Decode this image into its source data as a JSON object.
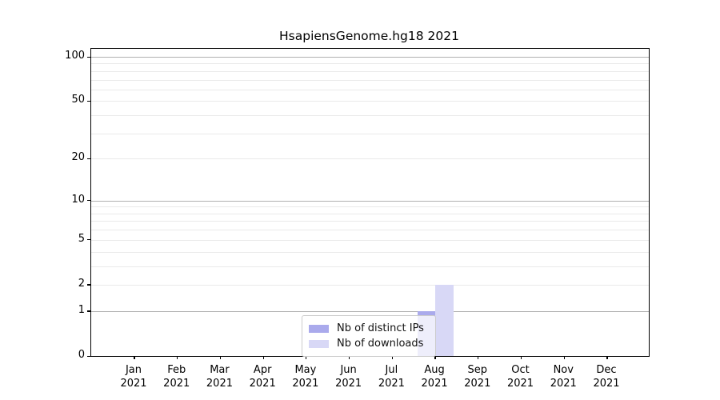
{
  "chart_data": {
    "type": "bar",
    "title": "HsapiensGenome.hg18 2021",
    "x_year": "2021",
    "categories": [
      "Jan",
      "Feb",
      "Mar",
      "Apr",
      "May",
      "Jun",
      "Jul",
      "Aug",
      "Sep",
      "Oct",
      "Nov",
      "Dec"
    ],
    "series": [
      {
        "name": "Nb of distinct IPs",
        "color": "#aaaaec",
        "values": [
          0,
          0,
          0,
          0,
          0,
          0,
          0,
          1,
          0,
          0,
          0,
          0
        ]
      },
      {
        "name": "Nb of downloads",
        "color": "#d8d8f6",
        "values": [
          0,
          0,
          0,
          0,
          0,
          0,
          0,
          2,
          0,
          0,
          0,
          0
        ]
      }
    ],
    "y_scale": "log1p",
    "ylim": [
      0,
      113.3
    ],
    "y_ticks": [
      0,
      1,
      2,
      5,
      10,
      20,
      50,
      100
    ],
    "gridlines": {
      "major": [
        1,
        10,
        100
      ],
      "minor": [
        2,
        3,
        4,
        5,
        6,
        7,
        8,
        9,
        20,
        30,
        40,
        50,
        60,
        70,
        80,
        90
      ],
      "major_color": "#b0b0b0",
      "minor_color": "#eaeaea"
    },
    "legend": {
      "position": "inside lower-center"
    },
    "grid": "on",
    "legend_entries": [
      "Nb of distinct IPs",
      "Nb of downloads"
    ]
  }
}
